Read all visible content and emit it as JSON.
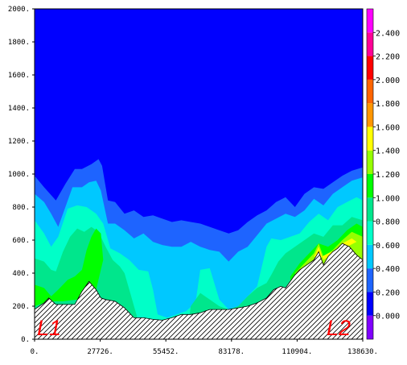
{
  "chart_data": {
    "type": "filled-contour",
    "title": "",
    "xlabel": "",
    "ylabel": "",
    "xlim": [
      0,
      138630
    ],
    "ylim": [
      0,
      2000
    ],
    "x_ticks": [
      {
        "value": 0,
        "label": "0."
      },
      {
        "value": 27726,
        "label": "27726."
      },
      {
        "value": 55452,
        "label": "55452."
      },
      {
        "value": 83178,
        "label": "83178."
      },
      {
        "value": 110904,
        "label": "110904."
      },
      {
        "value": 138630,
        "label": "138630."
      }
    ],
    "y_ticks": [
      {
        "value": 0,
        "label": "0."
      },
      {
        "value": 200,
        "label": "200."
      },
      {
        "value": 400,
        "label": "400."
      },
      {
        "value": 600,
        "label": "600."
      },
      {
        "value": 800,
        "label": "800."
      },
      {
        "value": 1000,
        "label": "1000."
      },
      {
        "value": 1200,
        "label": "1200."
      },
      {
        "value": 1400,
        "label": "1400."
      },
      {
        "value": 1600,
        "label": "1600."
      },
      {
        "value": 1800,
        "label": "1800."
      },
      {
        "value": 2000,
        "label": "2000."
      }
    ],
    "colorbar": {
      "range": [
        -0.2,
        2.6
      ],
      "labels": [
        "0.000",
        "0.200",
        "0.400",
        "0.600",
        "0.800",
        "1.000",
        "1.200",
        "1.400",
        "1.600",
        "1.800",
        "2.000",
        "2.200",
        "2.400"
      ],
      "levels": [
        {
          "from": -0.2,
          "to": 0.0,
          "color": "#8000ff"
        },
        {
          "from": 0.0,
          "to": 0.2,
          "color": "#0000ff"
        },
        {
          "from": 0.2,
          "to": 0.4,
          "color": "#1e64ff"
        },
        {
          "from": 0.4,
          "to": 0.6,
          "color": "#00c8ff"
        },
        {
          "from": 0.6,
          "to": 0.8,
          "color": "#00ffc8"
        },
        {
          "from": 0.8,
          "to": 1.0,
          "color": "#00e68c"
        },
        {
          "from": 1.0,
          "to": 1.2,
          "color": "#00ff00"
        },
        {
          "from": 1.2,
          "to": 1.4,
          "color": "#96ff00"
        },
        {
          "from": 1.4,
          "to": 1.6,
          "color": "#ffff00"
        },
        {
          "from": 1.6,
          "to": 1.8,
          "color": "#ff9600"
        },
        {
          "from": 1.8,
          "to": 2.0,
          "color": "#ff6400"
        },
        {
          "from": 2.0,
          "to": 2.2,
          "color": "#ff0000"
        },
        {
          "from": 2.2,
          "to": 2.4,
          "color": "#ff0096"
        },
        {
          "from": 2.4,
          "to": 2.6,
          "color": "#ff00ff"
        }
      ]
    },
    "terrain": {
      "x": [
        0,
        4000,
        6000,
        9000,
        13000,
        17000,
        20000,
        23000,
        26000,
        28000,
        30000,
        34000,
        38000,
        42000,
        46000,
        50000,
        54000,
        58000,
        62000,
        66000,
        70000,
        74000,
        78000,
        82000,
        86000,
        90000,
        94000,
        98000,
        101000,
        104000,
        106000,
        110000,
        112000,
        114000,
        116000,
        118000,
        120000,
        122000,
        124000,
        126000,
        128000,
        130000,
        133000,
        136000,
        138630
      ],
      "y": [
        180,
        220,
        250,
        210,
        210,
        210,
        290,
        350,
        300,
        250,
        240,
        230,
        190,
        130,
        130,
        120,
        115,
        130,
        150,
        150,
        160,
        180,
        180,
        180,
        190,
        200,
        220,
        250,
        300,
        320,
        310,
        390,
        420,
        440,
        460,
        480,
        530,
        450,
        500,
        530,
        550,
        580,
        560,
        510,
        480
      ]
    },
    "regions": [
      {
        "level": 0.1,
        "color": "#0000ff",
        "x": [
          0,
          138630,
          138630,
          0
        ],
        "y": [
          2000,
          2000,
          0,
          0
        ]
      },
      {
        "level": 0.3,
        "color": "#1e64ff",
        "x": [
          0,
          4000,
          9000,
          13000,
          17000,
          20000,
          24000,
          27000,
          28500,
          31000,
          34000,
          38000,
          42000,
          46000,
          50000,
          54000,
          58000,
          62000,
          66000,
          70000,
          74000,
          78000,
          82000,
          86000,
          90000,
          94000,
          98000,
          102000,
          106000,
          110000,
          114000,
          118000,
          122000,
          126000,
          130000,
          134000,
          138630,
          138630,
          0
        ],
        "y": [
          990,
          920,
          840,
          940,
          1030,
          1030,
          1060,
          1090,
          1050,
          840,
          830,
          760,
          780,
          740,
          750,
          730,
          710,
          720,
          710,
          700,
          680,
          660,
          640,
          660,
          710,
          750,
          780,
          830,
          860,
          800,
          880,
          920,
          910,
          950,
          990,
          1020,
          1040,
          0,
          0
        ]
      },
      {
        "level": 0.5,
        "color": "#00c8ff",
        "x": [
          0,
          4000,
          7000,
          10000,
          13000,
          16000,
          20000,
          23000,
          26000,
          28000,
          31000,
          34000,
          38000,
          42000,
          46000,
          50000,
          54000,
          58000,
          62000,
          66000,
          70000,
          74000,
          78000,
          82000,
          86000,
          90000,
          94000,
          98000,
          102000,
          106000,
          110000,
          114000,
          118000,
          122000,
          126000,
          130000,
          134000,
          138630,
          138630,
          0
        ],
        "y": [
          880,
          830,
          760,
          680,
          800,
          920,
          920,
          950,
          960,
          900,
          700,
          700,
          660,
          610,
          640,
          590,
          570,
          560,
          560,
          590,
          560,
          540,
          530,
          470,
          530,
          560,
          630,
          700,
          730,
          760,
          740,
          780,
          850,
          810,
          880,
          920,
          960,
          980,
          0,
          0
        ]
      },
      {
        "level": 0.7,
        "color": "#00ffc8",
        "x": [
          0,
          4000,
          7000,
          10000,
          14000,
          18000,
          22000,
          26000,
          29000,
          32000,
          36000,
          40000,
          44000,
          48000,
          50000,
          52000,
          56000,
          60000,
          64000,
          68000,
          70000,
          74000,
          78000,
          82000,
          86000,
          90000,
          94000,
          98000,
          100000,
          104000,
          108000,
          112000,
          116000,
          120000,
          124000,
          128000,
          132000,
          136000,
          138630,
          138630,
          0
        ],
        "y": [
          720,
          640,
          560,
          620,
          790,
          810,
          800,
          760,
          700,
          550,
          520,
          480,
          420,
          410,
          300,
          150,
          130,
          150,
          170,
          220,
          420,
          430,
          240,
          180,
          200,
          260,
          320,
          560,
          610,
          600,
          620,
          640,
          710,
          760,
          720,
          800,
          830,
          860,
          840,
          0,
          0
        ]
      },
      {
        "level": 0.9,
        "color": "#00e68c",
        "x": [
          0,
          4000,
          7000,
          9000,
          12000,
          15000,
          18000,
          21000,
          24000,
          27000,
          30000,
          33000,
          36000,
          38000,
          41000,
          42000,
          46000,
          54000,
          60000,
          64000,
          66000,
          70000,
          74000,
          78000,
          82000,
          86000,
          90000,
          94000,
          98000,
          100000,
          103000,
          106000,
          110000,
          114000,
          118000,
          122000,
          126000,
          130000,
          134000,
          138630,
          138630,
          0
        ],
        "y": [
          490,
          470,
          420,
          410,
          530,
          620,
          670,
          650,
          680,
          650,
          560,
          480,
          440,
          400,
          250,
          200,
          0,
          0,
          0,
          0,
          200,
          280,
          240,
          200,
          180,
          200,
          260,
          310,
          340,
          390,
          470,
          520,
          560,
          600,
          640,
          620,
          690,
          690,
          740,
          720,
          0,
          0
        ]
      },
      {
        "level": 1.1,
        "color": "#00ff00",
        "x": [
          0,
          4000,
          7000,
          10000,
          14000,
          17000,
          20000,
          22000,
          24000,
          26000,
          28000,
          29000,
          26000,
          22000,
          18000,
          12000,
          8000,
          4000,
          0
        ],
        "y": [
          330,
          310,
          260,
          300,
          360,
          380,
          420,
          540,
          620,
          670,
          640,
          480,
          300,
          260,
          240,
          230,
          230,
          220,
          200
        ]
      },
      {
        "level": 1.1,
        "color": "#00ff00",
        "x": [
          108000,
          112000,
          116000,
          120000,
          124000,
          128000,
          132000,
          136000,
          138630,
          138630,
          108000
        ],
        "y": [
          380,
          460,
          520,
          580,
          560,
          600,
          660,
          700,
          680,
          400,
          330
        ]
      },
      {
        "level": 1.3,
        "color": "#96ff00",
        "x": [
          110000,
          114000,
          118000,
          120000,
          122000,
          126000,
          130000,
          134000,
          138630,
          138630,
          110000
        ],
        "y": [
          400,
          460,
          520,
          580,
          500,
          540,
          600,
          650,
          620,
          420,
          380
        ]
      },
      {
        "level": 1.5,
        "color": "#ffff00",
        "x": [
          118000,
          120000,
          122000,
          126000,
          130000,
          134000,
          136000,
          132000,
          128000,
          124000,
          120000
        ],
        "y": [
          500,
          560,
          480,
          520,
          580,
          610,
          590,
          560,
          540,
          520,
          490
        ]
      }
    ],
    "annotations": [
      {
        "text": "L1",
        "position": "bottom-left"
      },
      {
        "text": "L2",
        "position": "bottom-right"
      }
    ]
  }
}
